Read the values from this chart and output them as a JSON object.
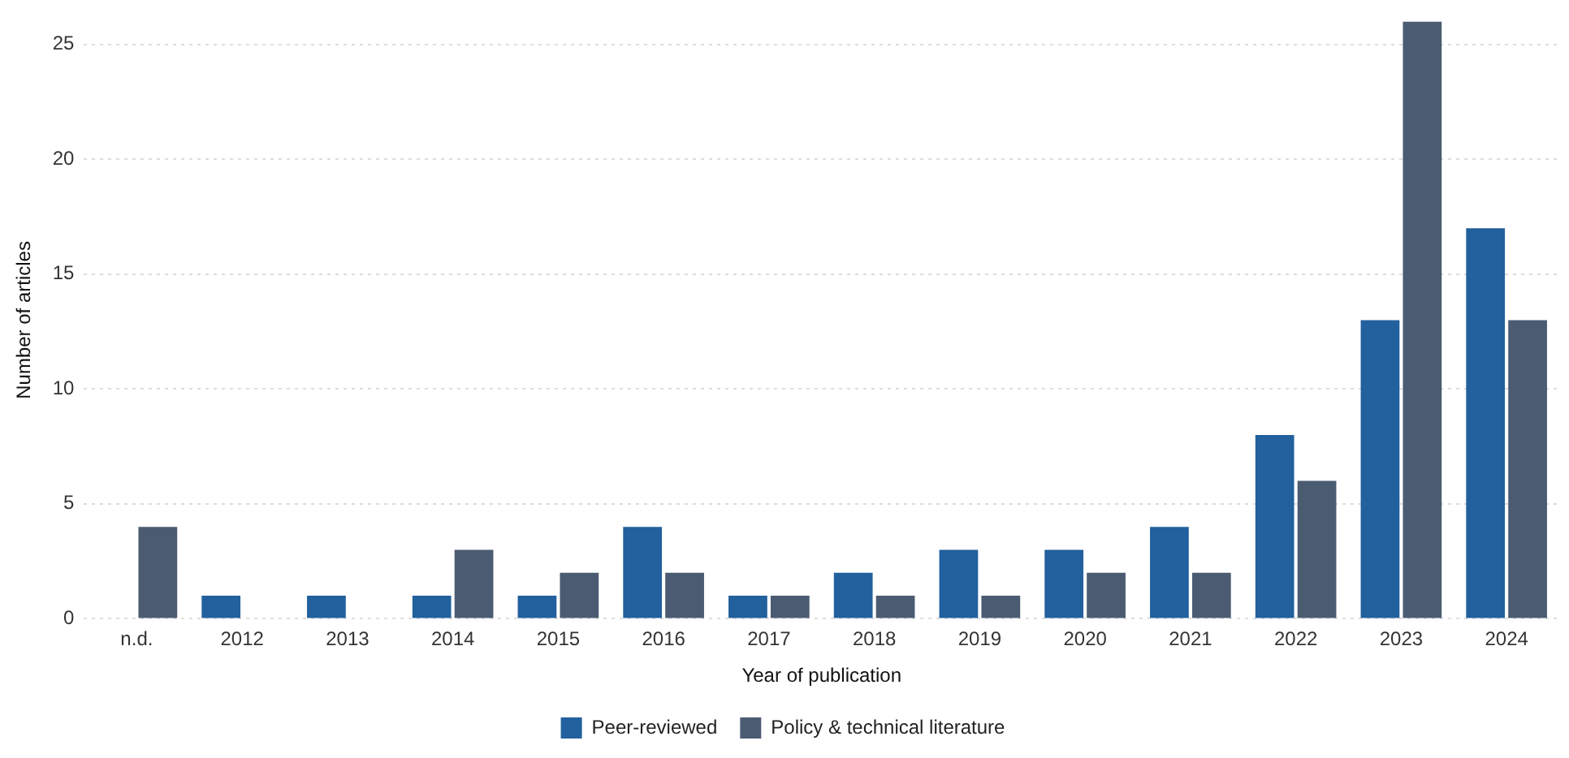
{
  "chart_data": {
    "type": "bar",
    "xlabel": "Year of publication",
    "ylabel": "Number of articles",
    "categories": [
      "n.d.",
      "2012",
      "2013",
      "2014",
      "2015",
      "2016",
      "2017",
      "2018",
      "2019",
      "2020",
      "2021",
      "2022",
      "2023",
      "2024"
    ],
    "series": [
      {
        "name": "Peer-reviewed",
        "color": "#22609e",
        "values": [
          0,
          1,
          1,
          1,
          1,
          4,
          1,
          2,
          3,
          3,
          4,
          8,
          13,
          17
        ]
      },
      {
        "name": "Policy & technical literature",
        "color": "#4b5c72",
        "values": [
          4,
          0,
          0,
          3,
          2,
          2,
          1,
          1,
          1,
          2,
          2,
          6,
          26,
          13
        ]
      }
    ],
    "ylim": [
      0,
      26
    ],
    "yticks": [
      0,
      5,
      10,
      15,
      20,
      25
    ],
    "grid": "y",
    "legend": "bottom"
  }
}
